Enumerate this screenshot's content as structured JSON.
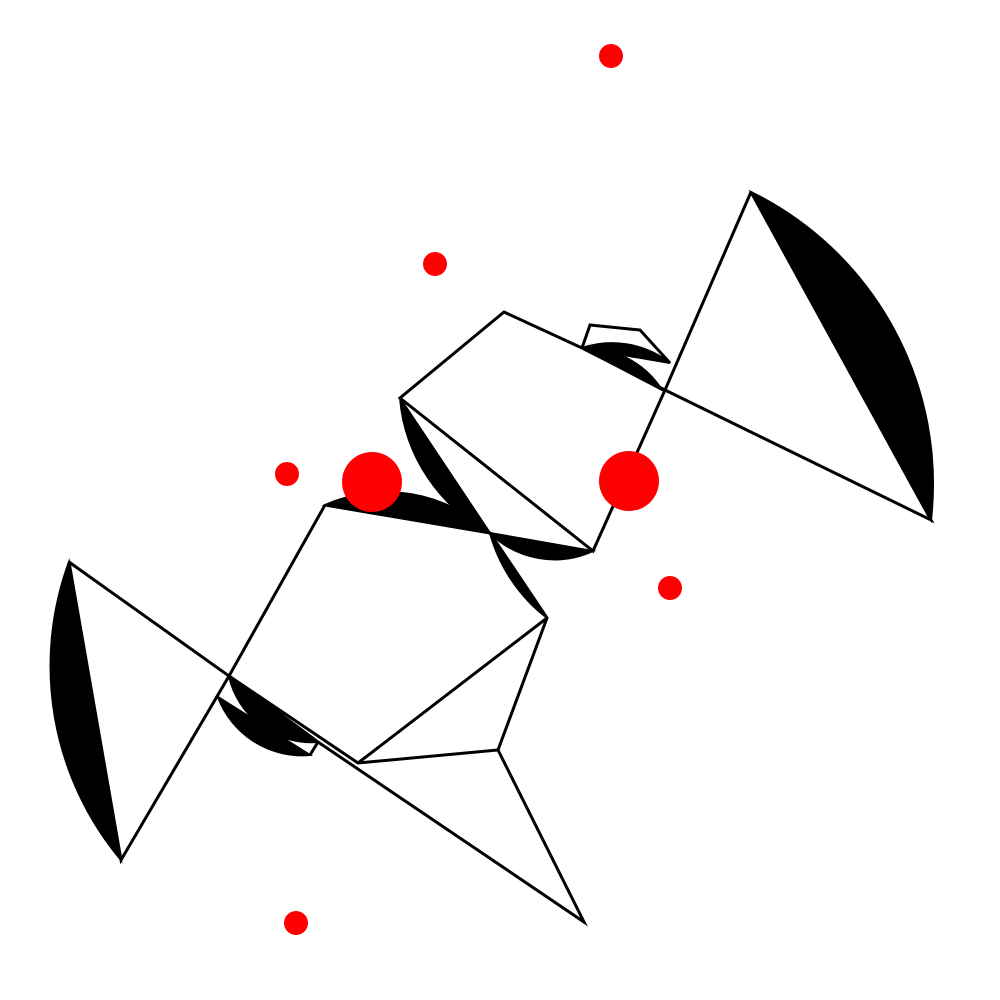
{
  "colors": {
    "background": "#ffffff",
    "stroke": "#000000",
    "fill": "#000000",
    "accent": "#ff0000"
  },
  "labels": []
}
